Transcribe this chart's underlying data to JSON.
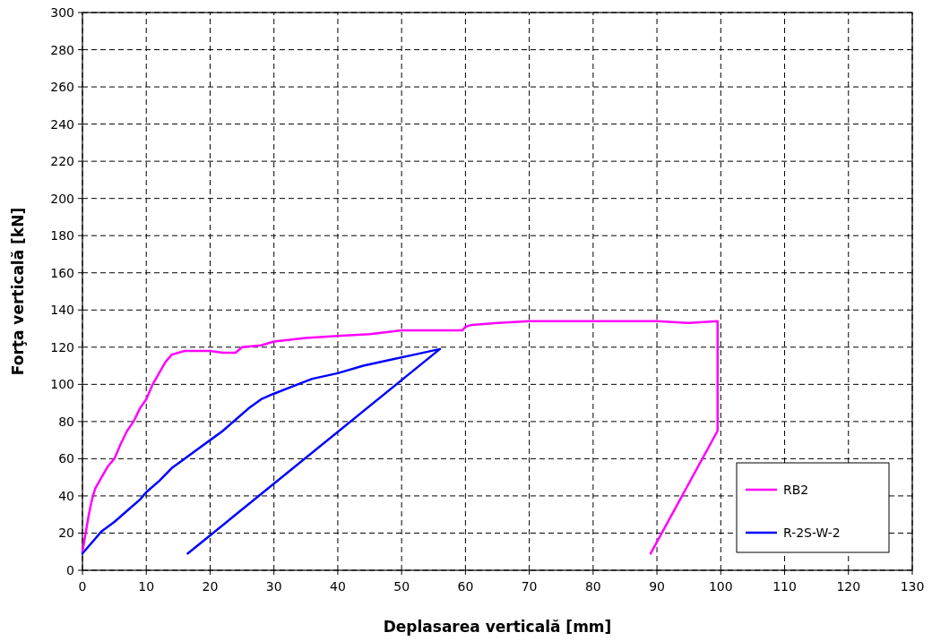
{
  "chart_data": {
    "type": "line",
    "xlabel": "Deplasarea verticală [mm]",
    "ylabel": "Forţa verticală [kN]",
    "xlim": [
      0,
      130
    ],
    "xticks": [
      0,
      10,
      20,
      30,
      40,
      50,
      60,
      70,
      80,
      90,
      100,
      110,
      120,
      130
    ],
    "ylim": [
      0,
      300
    ],
    "yticks": [
      0,
      20,
      40,
      60,
      80,
      100,
      120,
      140,
      160,
      180,
      200,
      220,
      240,
      260,
      280,
      300
    ],
    "grid": true,
    "legend": "bottom right",
    "marker": "none",
    "line_style": "solid",
    "series": [
      {
        "name": "RB2",
        "color": "#ff00ff",
        "x": [
          0,
          0.5,
          1,
          1.5,
          2,
          3,
          4,
          5,
          6,
          7,
          8,
          9,
          10,
          11,
          12,
          13,
          14,
          16,
          18,
          20,
          22,
          24,
          25,
          28,
          30,
          35,
          40,
          45,
          50,
          55,
          59.5,
          60,
          61,
          65,
          70,
          75,
          80,
          85,
          90,
          95,
          99.5,
          99.5,
          99.5,
          89
        ],
        "values": [
          10,
          20,
          30,
          38,
          44,
          50,
          56,
          60,
          68,
          75,
          80,
          87,
          92,
          100,
          106,
          112,
          116,
          118,
          118,
          118,
          117,
          117,
          120,
          121,
          123,
          125,
          126,
          127,
          129,
          129,
          129,
          131,
          132,
          133,
          134,
          134,
          134,
          134,
          134,
          133,
          134,
          100,
          75,
          9
        ]
      },
      {
        "name": "R-2S-W-2",
        "color": "#0000ff",
        "x": [
          0,
          1,
          2,
          3,
          5,
          7,
          9,
          10,
          12,
          14,
          16,
          18,
          20,
          22,
          24,
          26,
          28,
          30,
          33,
          36,
          40,
          44,
          48,
          52,
          56,
          16.5
        ],
        "values": [
          9,
          13,
          17,
          21,
          26,
          32,
          38,
          42,
          48,
          55,
          60,
          65,
          70,
          75,
          81,
          87,
          92,
          95,
          99,
          103,
          106,
          110,
          113,
          116,
          119,
          9
        ]
      }
    ]
  }
}
